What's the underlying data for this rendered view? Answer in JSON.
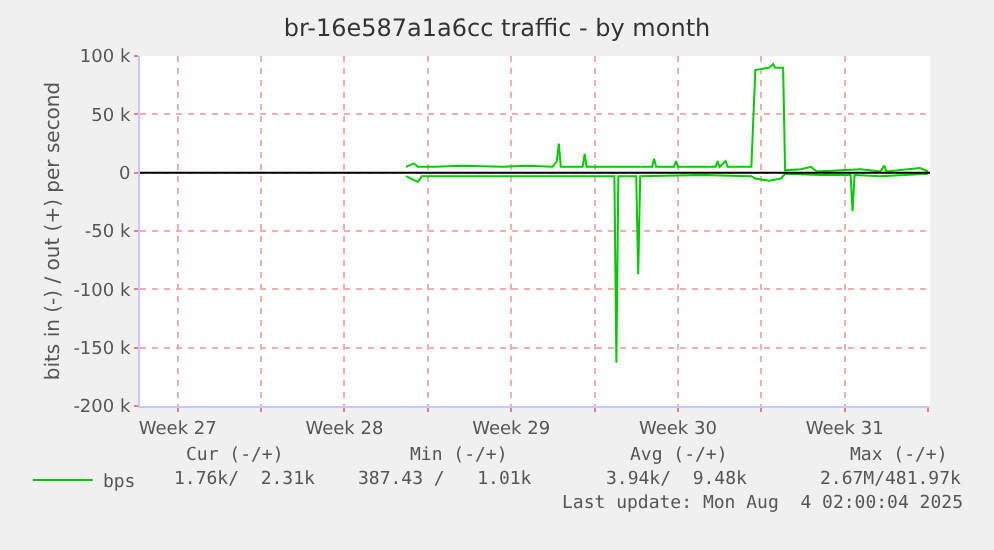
{
  "chart_data": {
    "type": "line",
    "title": "br-16e587a1a6cc traffic - by month",
    "ylabel": "bits in (-) / out (+) per second",
    "series": [
      {
        "name": "bps",
        "color": "#00cc00",
        "x": [
          "2025-07-13T02:00",
          "2025-07-13T10:00",
          "2025-07-13T14:00",
          "2025-07-14T06:00",
          "2025-07-15T12:00",
          "2025-07-17T04:00",
          "2025-07-18T04:00",
          "2025-07-19T06:00",
          "2025-07-19T10:00",
          "2025-07-19T12:00",
          "2025-07-19T14:00",
          "2025-07-20T12:00",
          "2025-07-20T14:00",
          "2025-07-20T16:00",
          "2025-07-21T18:00",
          "2025-07-22T20:00",
          "2025-07-23T10:00",
          "2025-07-23T12:00",
          "2025-07-23T14:00",
          "2025-07-24T08:00",
          "2025-07-24T10:00",
          "2025-07-24T12:00",
          "2025-07-26T02:00",
          "2025-07-26T04:00",
          "2025-07-26T06:00",
          "2025-07-26T12:00",
          "2025-07-26T14:00",
          "2025-07-27T14:00",
          "2025-07-27T18:00",
          "2025-07-28T08:00",
          "2025-07-28T12:00",
          "2025-07-28T14:00",
          "2025-07-28T22:00",
          "2025-07-29T00:00",
          "2025-07-29T16:00",
          "2025-07-30T02:00",
          "2025-07-30T08:00",
          "2025-08-01T04:00",
          "2025-08-02T00:00",
          "2025-08-02T04:00",
          "2025-08-02T06:00",
          "2025-08-03T16:00",
          "2025-08-04T00:00"
        ],
        "values": [
          5000,
          8000,
          5000,
          5000,
          6000,
          5000,
          6000,
          5000,
          10000,
          25000,
          5000,
          5000,
          16000,
          5000,
          5000,
          5000,
          5000,
          12000,
          5000,
          5000,
          10000,
          5000,
          5000,
          10000,
          5000,
          10000,
          5000,
          5000,
          88000,
          90000,
          93000,
          90000,
          90000,
          2000,
          3000,
          5000,
          1000,
          3000,
          1000,
          6000,
          1000,
          4000,
          1000
        ]
      },
      {
        "color": "#00cc00",
        "x": [
          "2025-07-13T02:00",
          "2025-07-13T14:00",
          "2025-07-13T18:00",
          "2025-07-17T04:00",
          "2025-07-21T08:00",
          "2025-07-21T20:00",
          "2025-07-21T22:00",
          "2025-07-22T00:00",
          "2025-07-22T18:00",
          "2025-07-22T20:00",
          "2025-07-22T22:00",
          "2025-07-25T12:00",
          "2025-07-27T14:00",
          "2025-07-27T18:00",
          "2025-07-28T08:00",
          "2025-07-28T20:00",
          "2025-07-29T00:00",
          "2025-07-30T12:00",
          "2025-07-31T18:00",
          "2025-07-31T20:00",
          "2025-07-31T22:00",
          "2025-08-02T00:00",
          "2025-08-04T00:00"
        ],
        "values": [
          -3000,
          -8000,
          -3000,
          -3000,
          -3000,
          -3000,
          -163000,
          -3000,
          -3000,
          -87000,
          -3000,
          -2000,
          -3000,
          -5000,
          -7000,
          -5000,
          -1000,
          -2000,
          -2000,
          -33000,
          -2000,
          -3000,
          -1000
        ]
      }
    ],
    "xlim": [
      "2025-07-01T22:00",
      "2025-08-04T02:00"
    ],
    "xticks": [
      {
        "value": "2025-07-03T12:00",
        "label": "Week 27"
      },
      {
        "value": "2025-07-07",
        "label": null
      },
      {
        "value": "2025-07-10T12:00",
        "label": "Week 28"
      },
      {
        "value": "2025-07-14",
        "label": null
      },
      {
        "value": "2025-07-17T12:00",
        "label": "Week 29"
      },
      {
        "value": "2025-07-21",
        "label": null
      },
      {
        "value": "2025-07-24T12:00",
        "label": "Week 30"
      },
      {
        "value": "2025-07-28",
        "label": null
      },
      {
        "value": "2025-07-31T12:00",
        "label": "Week 31"
      },
      {
        "value": "2025-08-04",
        "label": null
      }
    ],
    "ylim": [
      -200000,
      100000
    ],
    "yticks": [
      {
        "value": -200000,
        "label": "-200 k"
      },
      {
        "value": -150000,
        "label": "-150 k"
      },
      {
        "value": -100000,
        "label": "-100 k"
      },
      {
        "value": -50000,
        "label": "-50 k"
      },
      {
        "value": 0,
        "label": "0"
      },
      {
        "value": 50000,
        "label": "50 k"
      },
      {
        "value": 100000,
        "label": "100 k"
      }
    ],
    "ref_lines": [
      {
        "axis": "y",
        "value": 0,
        "color": "#000000"
      }
    ],
    "grid": true,
    "legend": "bottom",
    "marker": "none",
    "line_style": "solid",
    "annotations": [
      "Cur (-/+)",
      "Min (-/+)",
      "Avg (-/+)",
      "Max (-/+)",
      "1.76k/  2.31k",
      "387.43 /   1.01k",
      "3.94k/  9.48k",
      "2.67M/481.97k",
      "Last update: Mon Aug  4 02:00:04 2025"
    ]
  }
}
